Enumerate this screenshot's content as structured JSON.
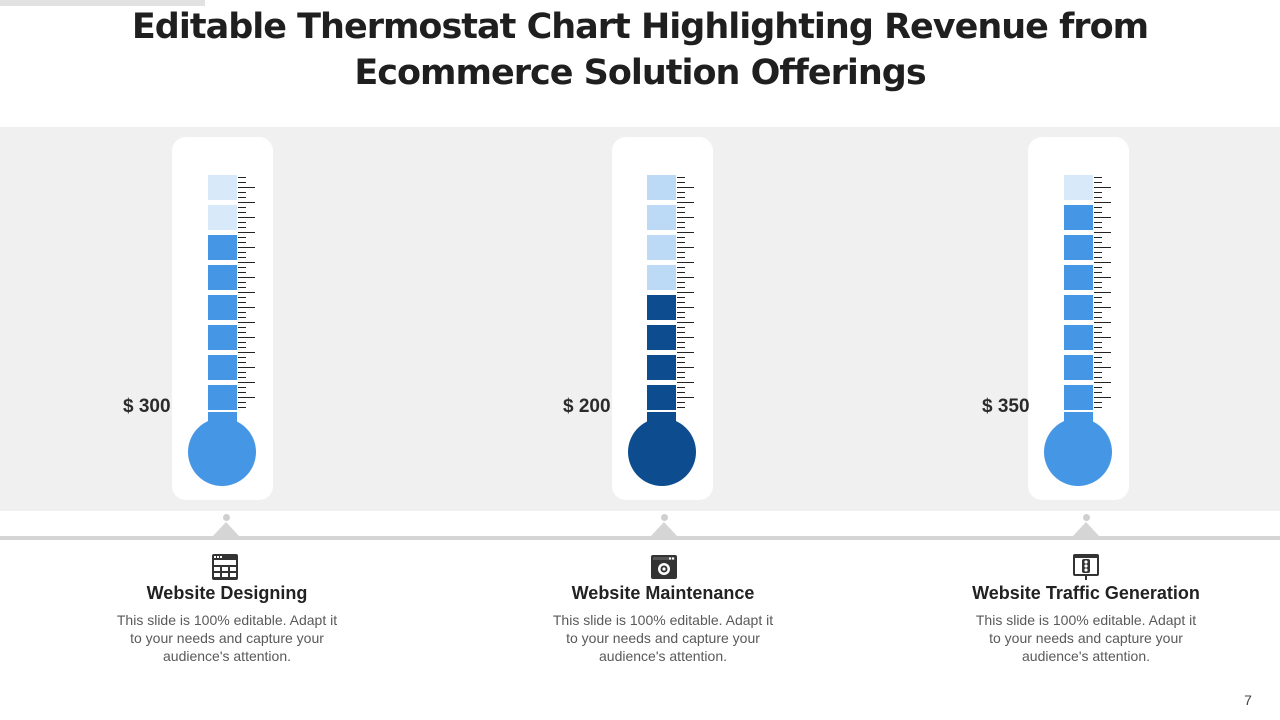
{
  "slide": {
    "title_line1": "Editable Thermostat Chart Highlighting Revenue from",
    "title_line2": "Ecommerce Solution Offerings",
    "page_number": "7"
  },
  "colors": {
    "background_band": "#f0f0f0",
    "empty_segment": "#bcdaf6",
    "filled_light": "#4696e6",
    "filled_dark": "#0d4d8f"
  },
  "chart_data": {
    "type": "thermometer",
    "title": "Editable Thermostat Chart Highlighting Revenue from Ecommerce Solution Offerings",
    "total_segments": 8,
    "series": [
      {
        "name": "Website Designing",
        "value_label": "$ 300",
        "filled_segments": 6,
        "color": "#4696e6",
        "empty_color": "#d8e9f9"
      },
      {
        "name": "Website Maintenance",
        "value_label": "$ 200",
        "filled_segments": 4,
        "color": "#0d4d8f",
        "empty_color": "#bcdaf6"
      },
      {
        "name": "Website Traffic Generation",
        "value_label": "$ 350",
        "filled_segments": 7,
        "color": "#4696e6",
        "empty_color": "#d8e9f9"
      }
    ]
  },
  "items": [
    {
      "icon": "web-design-icon",
      "title": "Website Designing",
      "desc_line1": "This slide is 100% editable. Adapt it",
      "desc_line2": "to your needs and capture your",
      "desc_line3": "audience's attention."
    },
    {
      "icon": "maintenance-gear-icon",
      "title": "Website Maintenance",
      "desc_line1": "This slide is 100% editable. Adapt it",
      "desc_line2": "to your needs and capture your",
      "desc_line3": "audience's attention."
    },
    {
      "icon": "traffic-light-icon",
      "title": "Website Traffic Generation",
      "desc_line1": "This slide is 100% editable. Adapt it",
      "desc_line2": "to your needs and capture your",
      "desc_line3": "audience's attention."
    }
  ]
}
